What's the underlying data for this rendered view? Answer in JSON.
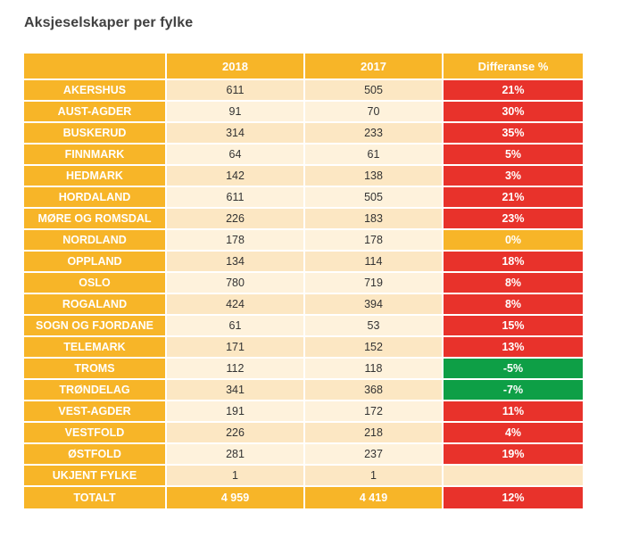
{
  "title": "Aksjeselskaper per fylke",
  "headers": [
    "",
    "2018",
    "2017",
    "Differanse %"
  ],
  "colors": {
    "header": "#f7b528",
    "increase": "#e8322b",
    "decrease": "#0e9f46",
    "unchanged": "#f7b528",
    "row_light": "#fef2dc",
    "row_dark": "#fce7c3"
  },
  "rows": [
    {
      "county": "AKERSHUS",
      "y2018": "611",
      "y2017": "505",
      "diff": "21%",
      "status": "pos"
    },
    {
      "county": "AUST-AGDER",
      "y2018": "91",
      "y2017": "70",
      "diff": "30%",
      "status": "pos"
    },
    {
      "county": "BUSKERUD",
      "y2018": "314",
      "y2017": "233",
      "diff": "35%",
      "status": "pos"
    },
    {
      "county": "FINNMARK",
      "y2018": "64",
      "y2017": "61",
      "diff": "5%",
      "status": "pos"
    },
    {
      "county": "HEDMARK",
      "y2018": "142",
      "y2017": "138",
      "diff": "3%",
      "status": "pos"
    },
    {
      "county": "HORDALAND",
      "y2018": "611",
      "y2017": "505",
      "diff": "21%",
      "status": "pos"
    },
    {
      "county": "MØRE OG ROMSDAL",
      "y2018": "226",
      "y2017": "183",
      "diff": "23%",
      "status": "pos"
    },
    {
      "county": "NORDLAND",
      "y2018": "178",
      "y2017": "178",
      "diff": "0%",
      "status": "zero"
    },
    {
      "county": "OPPLAND",
      "y2018": "134",
      "y2017": "114",
      "diff": "18%",
      "status": "pos"
    },
    {
      "county": "OSLO",
      "y2018": "780",
      "y2017": "719",
      "diff": "8%",
      "status": "pos"
    },
    {
      "county": "ROGALAND",
      "y2018": "424",
      "y2017": "394",
      "diff": "8%",
      "status": "pos"
    },
    {
      "county": "SOGN OG FJORDANE",
      "y2018": "61",
      "y2017": "53",
      "diff": "15%",
      "status": "pos"
    },
    {
      "county": "TELEMARK",
      "y2018": "171",
      "y2017": "152",
      "diff": "13%",
      "status": "pos"
    },
    {
      "county": "TROMS",
      "y2018": "112",
      "y2017": "118",
      "diff": "-5%",
      "status": "neg"
    },
    {
      "county": "TRØNDELAG",
      "y2018": "341",
      "y2017": "368",
      "diff": "-7%",
      "status": "neg"
    },
    {
      "county": "VEST-AGDER",
      "y2018": "191",
      "y2017": "172",
      "diff": "11%",
      "status": "pos"
    },
    {
      "county": "VESTFOLD",
      "y2018": "226",
      "y2017": "218",
      "diff": "4%",
      "status": "pos"
    },
    {
      "county": "ØSTFOLD",
      "y2018": "281",
      "y2017": "237",
      "diff": "19%",
      "status": "pos"
    },
    {
      "county": "UKJENT FYLKE",
      "y2018": "1",
      "y2017": "1",
      "diff": "",
      "status": "none"
    }
  ],
  "total": {
    "county": "TOTALT",
    "y2018": "4 959",
    "y2017": "4 419",
    "diff": "12%"
  }
}
